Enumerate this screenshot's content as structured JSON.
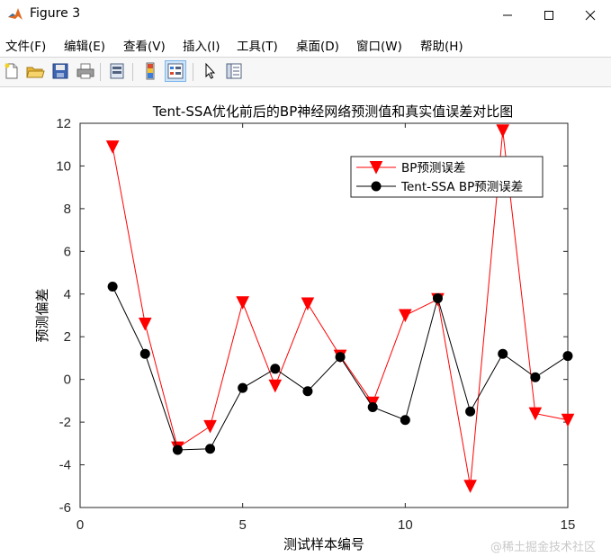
{
  "window": {
    "title": "Figure 3"
  },
  "menu": {
    "items": [
      "文件(F)",
      "编辑(E)",
      "查看(V)",
      "插入(I)",
      "工具(T)",
      "桌面(D)",
      "窗口(W)",
      "帮助(H)"
    ]
  },
  "toolbar": {
    "icons": [
      "new-file-icon",
      "open-folder-icon",
      "save-icon",
      "print-icon",
      "link-plot-icon",
      "colorbar-icon",
      "legend-icon",
      "pointer-icon",
      "property-editor-icon"
    ]
  },
  "watermark": "@稀土掘金技术社区",
  "chart_data": {
    "type": "line",
    "title": "Tent-SSA优化前后的BP神经网络预测值和真实值误差对比图",
    "xlabel": "测试样本编号",
    "ylabel": "预测偏差",
    "xlim": [
      0,
      15
    ],
    "ylim": [
      -6,
      12
    ],
    "xticks": [
      0,
      5,
      10,
      15
    ],
    "yticks": [
      -6,
      -4,
      -2,
      0,
      2,
      4,
      6,
      8,
      10,
      12
    ],
    "grid": false,
    "legend_position": "top-right",
    "x": [
      1,
      2,
      3,
      4,
      5,
      6,
      7,
      8,
      9,
      10,
      11,
      12,
      13,
      14,
      15
    ],
    "series": [
      {
        "name": "BP预测误差",
        "color": "#ff0000",
        "marker": "triangle-down",
        "values": [
          10.9,
          2.6,
          -3.2,
          -2.2,
          3.6,
          -0.3,
          3.55,
          1.1,
          -1.1,
          3.0,
          3.75,
          -5.0,
          11.65,
          -1.6,
          -1.9
        ]
      },
      {
        "name": "Tent-SSA BP预测误差",
        "color": "#000000",
        "marker": "circle",
        "values": [
          4.35,
          1.2,
          -3.3,
          -3.25,
          -0.4,
          0.5,
          -0.55,
          1.05,
          -1.3,
          -1.9,
          3.8,
          -1.5,
          1.2,
          0.1,
          1.1
        ]
      }
    ]
  }
}
